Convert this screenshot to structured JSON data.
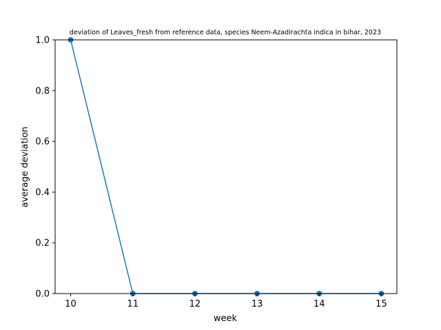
{
  "chart_data": {
    "type": "line",
    "title": "deviation of Leaves_fresh from reference data, species Neem-Azadirachta indica in bihar, 2023",
    "xlabel": "week",
    "ylabel": "average deviation",
    "x": [
      10,
      11,
      12,
      13,
      14,
      15
    ],
    "series": [
      {
        "name": "average deviation",
        "values": [
          1.0,
          0.0,
          0.0,
          0.0,
          0.0,
          0.0
        ]
      }
    ],
    "xlim": [
      9.75,
      15.25
    ],
    "ylim": [
      0.0,
      1.0
    ],
    "xticks": [
      10,
      11,
      12,
      13,
      14,
      15
    ],
    "xtick_labels": [
      "10",
      "11",
      "12",
      "13",
      "14",
      "15"
    ],
    "yticks": [
      0.0,
      0.2,
      0.4,
      0.6,
      0.8,
      1.0
    ],
    "ytick_labels": [
      "0.0",
      "0.2",
      "0.4",
      "0.6",
      "0.8",
      "1.0"
    ],
    "grid": false,
    "legend": "none",
    "line_color": "#1f77b4",
    "marker": "circle"
  }
}
